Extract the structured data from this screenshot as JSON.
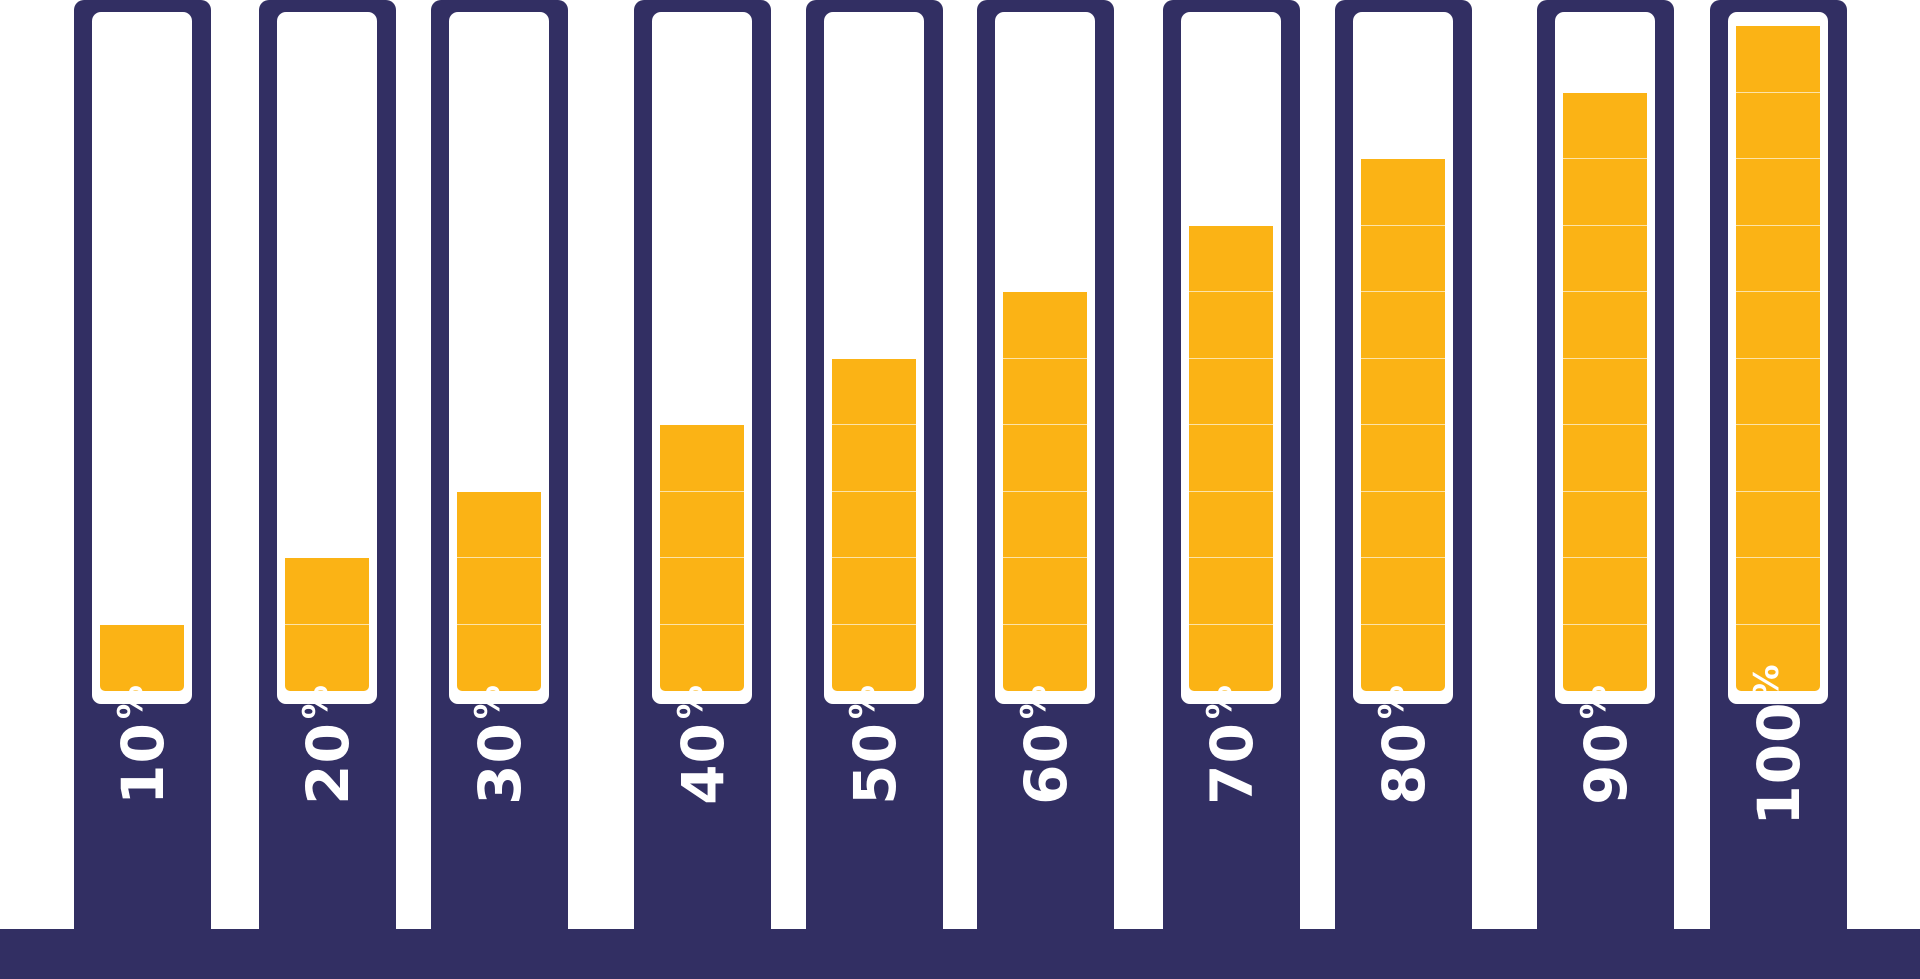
{
  "colors": {
    "frame": "#322f63",
    "fill": "#fbb315",
    "background": "#ffffff",
    "cell_divider": "#fce3a8"
  },
  "segments_per_bar": 10,
  "bars": [
    {
      "number": "10",
      "sign": "%",
      "filled_segments": 1
    },
    {
      "number": "20",
      "sign": "%",
      "filled_segments": 2
    },
    {
      "number": "30",
      "sign": "%",
      "filled_segments": 3
    },
    {
      "number": "40",
      "sign": "%",
      "filled_segments": 4
    },
    {
      "number": "50",
      "sign": "%",
      "filled_segments": 5
    },
    {
      "number": "60",
      "sign": "%",
      "filled_segments": 6
    },
    {
      "number": "70",
      "sign": "%",
      "filled_segments": 7
    },
    {
      "number": "80",
      "sign": "%",
      "filled_segments": 8
    },
    {
      "number": "90",
      "sign": "%",
      "filled_segments": 9
    },
    {
      "number": "100",
      "sign": "%",
      "filled_segments": 10
    }
  ]
}
